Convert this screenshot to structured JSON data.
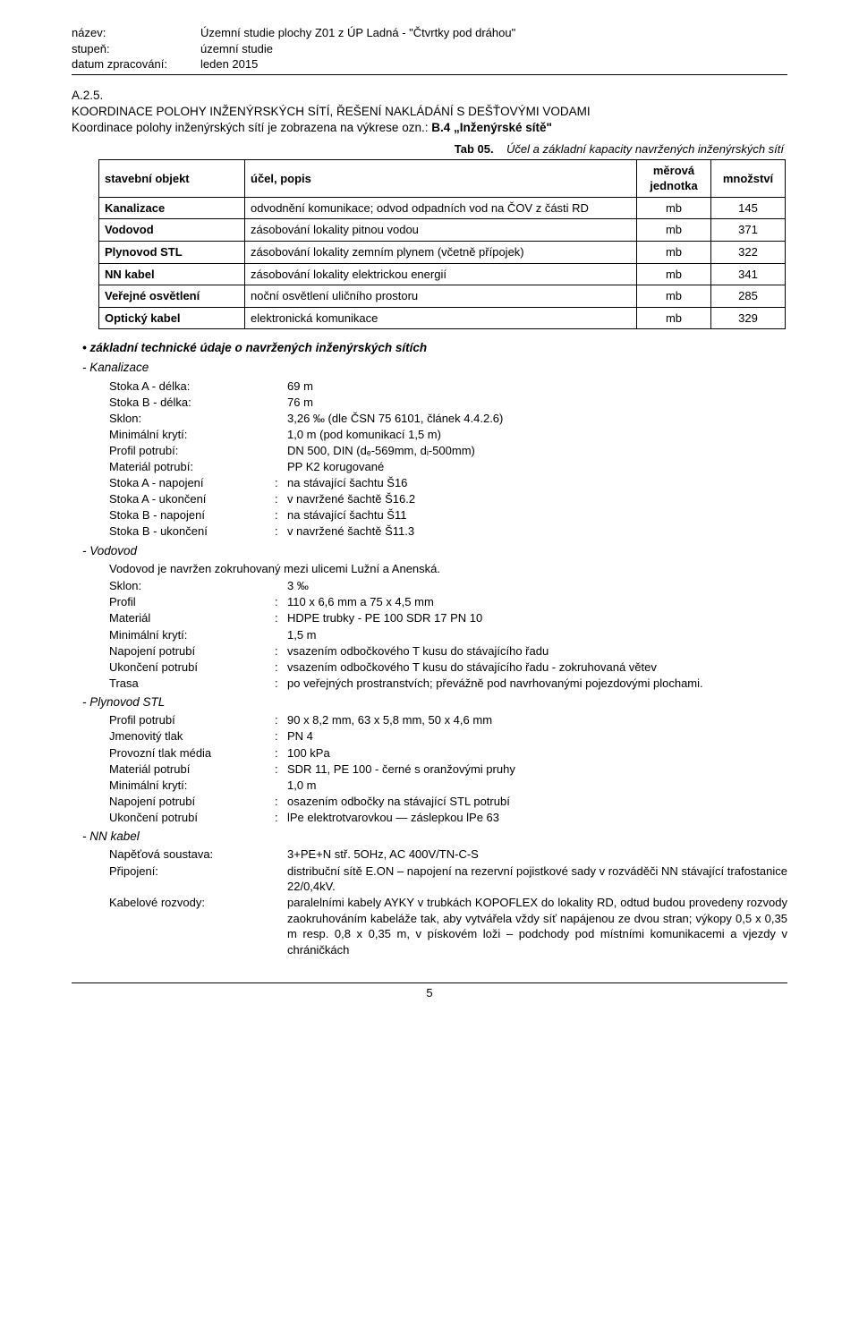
{
  "header": {
    "rows": [
      {
        "label": "název:",
        "value": "Územní studie plochy Z01 z ÚP Ladná - \"Čtvrtky pod dráhou\""
      },
      {
        "label": "stupeň:",
        "value": "územní studie"
      },
      {
        "label": "datum zpracování:",
        "value": "leden 2015"
      }
    ]
  },
  "section": {
    "num": "A.2.5.",
    "title": "KOORDINACE POLOHY INŽENÝRSKÝCH SÍTÍ, ŘEŠENÍ NAKLÁDÁNÍ S DEŠŤOVÝMI VODAMI",
    "line2_pre": "Koordinace polohy inženýrských sítí je zobrazena na výkrese ozn.: ",
    "line2_bold": "B.4 „Inženýrské sítě\""
  },
  "tab05": {
    "caption_no": "Tab 05.",
    "caption_txt": "Účel a základní kapacity navržených inženýrských sítí",
    "headers": {
      "c1": "stavební objekt",
      "c2": "účel, popis",
      "c3": "měrová jednotka",
      "c4": "množství"
    },
    "rows": [
      {
        "obj": "Kanalizace",
        "desc": "odvodnění komunikace; odvod odpadních vod na ČOV z části RD",
        "unit": "mb",
        "qty": "145"
      },
      {
        "obj": "Vodovod",
        "desc": "zásobování lokality pitnou vodou",
        "unit": "mb",
        "qty": "371"
      },
      {
        "obj": "Plynovod STL",
        "desc": "zásobování lokality zemním plynem (včetně přípojek)",
        "unit": "mb",
        "qty": "322"
      },
      {
        "obj": "NN kabel",
        "desc": "zásobování lokality elektrickou energií",
        "unit": "mb",
        "qty": "341"
      },
      {
        "obj": "Veřejné osvětlení",
        "desc": "noční osvětlení uličního prostoru",
        "unit": "mb",
        "qty": "285"
      },
      {
        "obj": "Optický kabel",
        "desc": "elektronická komunikace",
        "unit": "mb",
        "qty": "329"
      }
    ]
  },
  "tech": {
    "heading": "základní technické údaje o navržených inženýrských sítích",
    "sections": [
      {
        "name": "Kanalizace",
        "rows": [
          {
            "label": "Stoka A - délka:",
            "colon": "",
            "value": "69 m"
          },
          {
            "label": "Stoka B - délka:",
            "colon": "",
            "value": "76 m"
          },
          {
            "label": "Sklon:",
            "colon": "",
            "value": "3,26 ‰ (dle ČSN 75 6101, článek 4.4.2.6)"
          },
          {
            "label": "Minimální krytí:",
            "colon": "",
            "value": "1,0 m (pod komunikací 1,5 m)"
          },
          {
            "label": "Profil potrubí:",
            "colon": "",
            "value": "DN 500, DIN (dₑ-569mm, dᵢ-500mm)"
          },
          {
            "label": "Materiál potrubí:",
            "colon": "",
            "value": "PP K2 korugované"
          },
          {
            "label": "Stoka A - napojení",
            "colon": ":",
            "value": "na stávající šachtu Š16"
          },
          {
            "label": "Stoka A - ukončení",
            "colon": ":",
            "value": "v navržené šachtě Š16.2"
          },
          {
            "label": "Stoka B - napojení",
            "colon": ":",
            "value": "na stávající šachtu Š11"
          },
          {
            "label": "Stoka B - ukončení",
            "colon": ":",
            "value": "v navržené šachtě Š11.3"
          }
        ]
      },
      {
        "name": "Vodovod",
        "intro": "Vodovod je navržen zokruhovaný mezi ulicemi Lužní a Anenská.",
        "rows": [
          {
            "label": "Sklon:",
            "colon": "",
            "value": "3 ‰"
          },
          {
            "label": "Profil",
            "colon": ":",
            "value": "110 x 6,6 mm a 75 x 4,5 mm"
          },
          {
            "label": "Materiál",
            "colon": ":",
            "value": "HDPE trubky  - PE 100 SDR 17  PN 10"
          },
          {
            "label": "Minimální krytí:",
            "colon": "",
            "value": "1,5 m"
          },
          {
            "label": "Napojení potrubí",
            "colon": ":",
            "value": "vsazením odbočkového T kusu do stávajícího řadu"
          },
          {
            "label": "Ukončení potrubí",
            "colon": ":",
            "value": "vsazením odbočkového T kusu do stávajícího řadu - zokruhovaná větev"
          },
          {
            "label": "Trasa",
            "colon": ":",
            "value": "po veřejných prostranstvích; převážně pod navrhovanými pojezdovými plochami."
          }
        ]
      },
      {
        "name": "Plynovod STL",
        "rows": [
          {
            "label": "Profil potrubí",
            "colon": ":",
            "value": "90 x 8,2 mm, 63 x 5,8 mm, 50 x 4,6 mm"
          },
          {
            "label": "Jmenovitý tlak",
            "colon": ":",
            "value": "PN 4"
          },
          {
            "label": "Provozní tlak média",
            "colon": ":",
            "value": "100 kPa"
          },
          {
            "label": "Materiál potrubí",
            "colon": ":",
            "value": "SDR 11, PE 100 - černé s oranžovými pruhy"
          },
          {
            "label": "Minimální krytí:",
            "colon": "",
            "value": "1,0 m"
          },
          {
            "label": "Napojení potrubí",
            "colon": ":",
            "value": "osazením odbočky na stávající STL potrubí"
          },
          {
            "label": "Ukončení potrubí",
            "colon": ":",
            "value": "lPe elektrotvarovkou — záslepkou lPe 63"
          }
        ]
      },
      {
        "name": "NN kabel",
        "rows": [
          {
            "label": "Napěťová soustava:",
            "colon": "",
            "value": "3+PE+N stř. 5OHz, AC 400V/TN-C-S"
          },
          {
            "label": "Připojení:",
            "colon": "",
            "value": "distribuční sítě E.ON – napojení na rezervní pojistkové sady v rozváděči NN stávající trafostanice 22/0,4kV."
          },
          {
            "label": "Kabelové rozvody:",
            "colon": "",
            "value": "paralelními kabely AYKY v trubkách KOPOFLEX do lokality RD, odtud budou provedeny rozvody zaokruhováním kabeláže tak, aby vytvářela vždy síť napájenou ze dvou stran; výkopy 0,5 x 0,35 m resp. 0,8 x 0,35 m, v pískovém loži – podchody pod místními komunikacemi a vjezdy v chráničkách"
          }
        ]
      }
    ]
  },
  "page_number": "5"
}
